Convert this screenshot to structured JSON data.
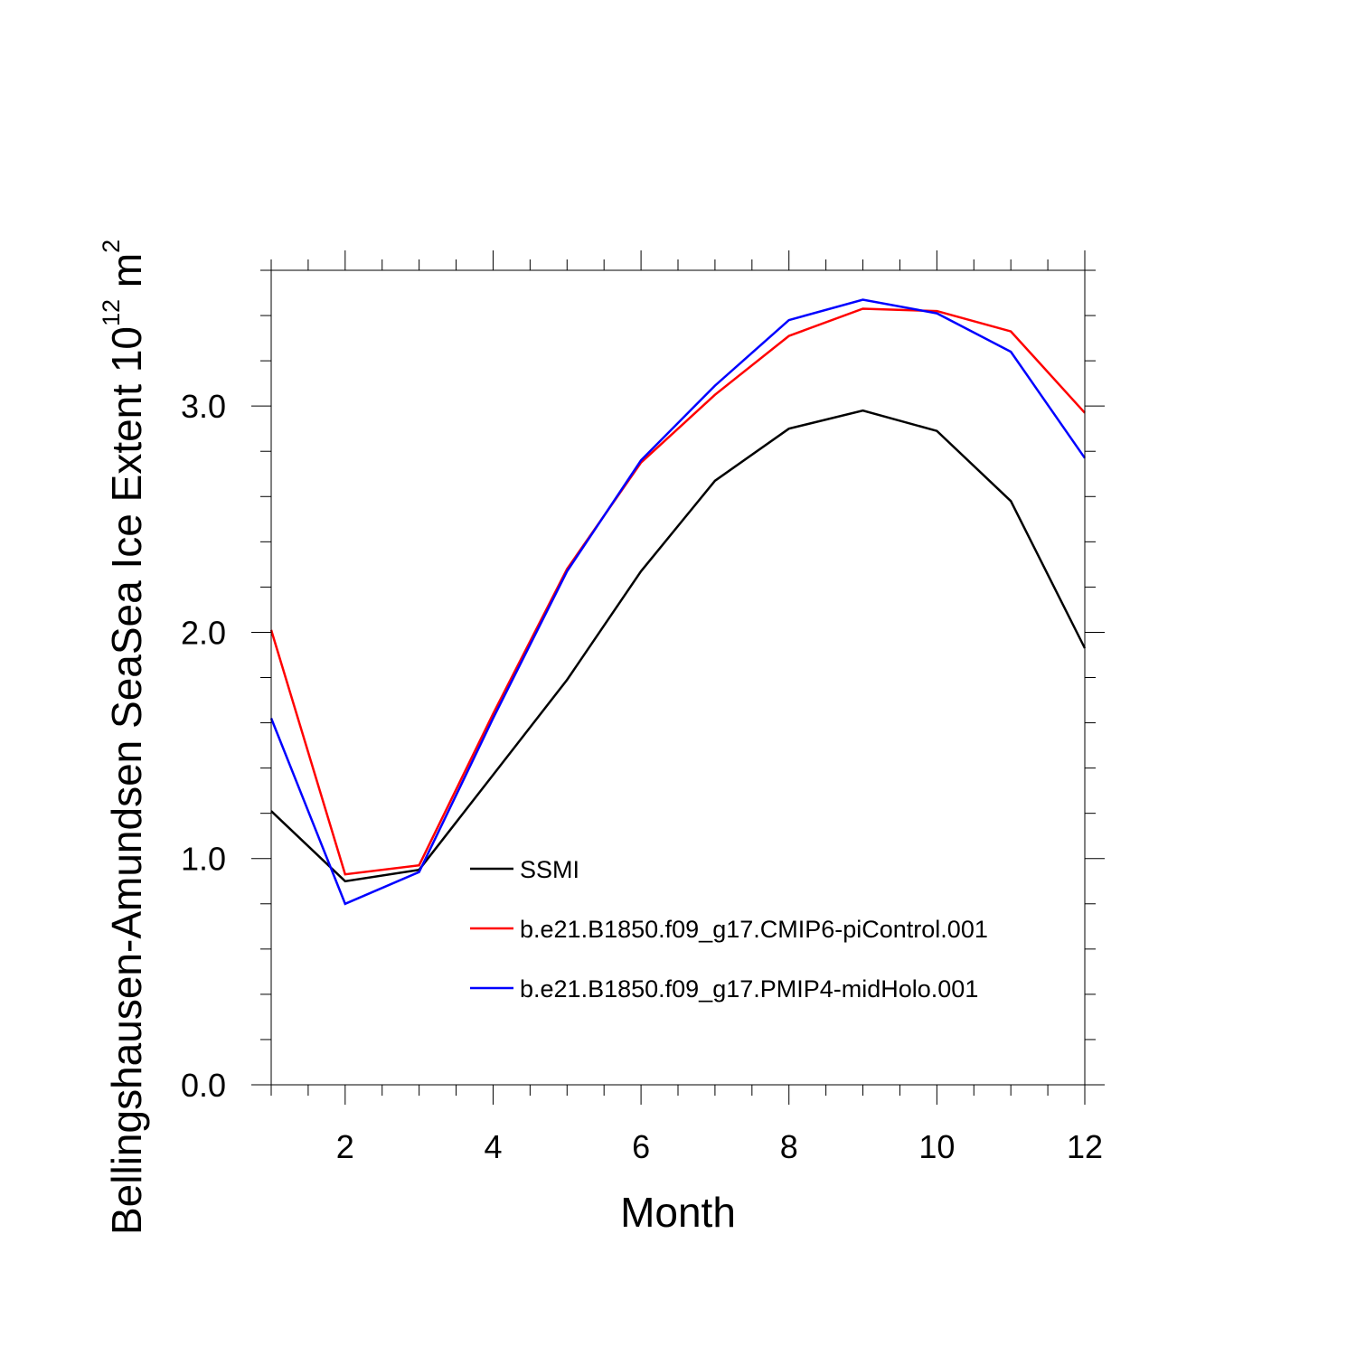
{
  "chart_data": {
    "type": "line",
    "title": "",
    "xlabel": "Month",
    "ylabel": {
      "text": "Bellingshausen-Amundsen SeaSea Ice Extent 10",
      "sup": "12",
      "unit": " m",
      "unit_sup": "2"
    },
    "xlim": [
      1,
      12
    ],
    "ylim": [
      0,
      3.6
    ],
    "x_ticks": [
      2,
      4,
      6,
      8,
      10,
      12
    ],
    "x_tick_labels": [
      "2",
      "4",
      "6",
      "8",
      "10",
      "12"
    ],
    "y_ticks": [
      0,
      1,
      2,
      3
    ],
    "y_tick_labels": [
      "0.0",
      "1.0",
      "2.0",
      "3.0"
    ],
    "x": [
      1,
      2,
      3,
      4,
      5,
      6,
      7,
      8,
      9,
      10,
      11,
      12
    ],
    "series": [
      {
        "name": "SSMI",
        "color": "#000000",
        "values": [
          1.21,
          0.9,
          0.95,
          1.37,
          1.79,
          2.27,
          2.67,
          2.9,
          2.98,
          2.89,
          2.58,
          1.93
        ]
      },
      {
        "name": "b.e21.B1850.f09_g17.CMIP6-piControl.001",
        "color": "#ff0000",
        "values": [
          2.01,
          0.93,
          0.97,
          1.64,
          2.28,
          2.75,
          3.05,
          3.31,
          3.43,
          3.42,
          3.33,
          2.97
        ]
      },
      {
        "name": "b.e21.B1850.f09_g17.PMIP4-midHolo.001",
        "color": "#0000ff",
        "values": [
          1.62,
          0.8,
          0.94,
          1.62,
          2.27,
          2.76,
          3.09,
          3.38,
          3.47,
          3.41,
          3.24,
          2.77
        ]
      }
    ],
    "legend_position": "center-right"
  }
}
